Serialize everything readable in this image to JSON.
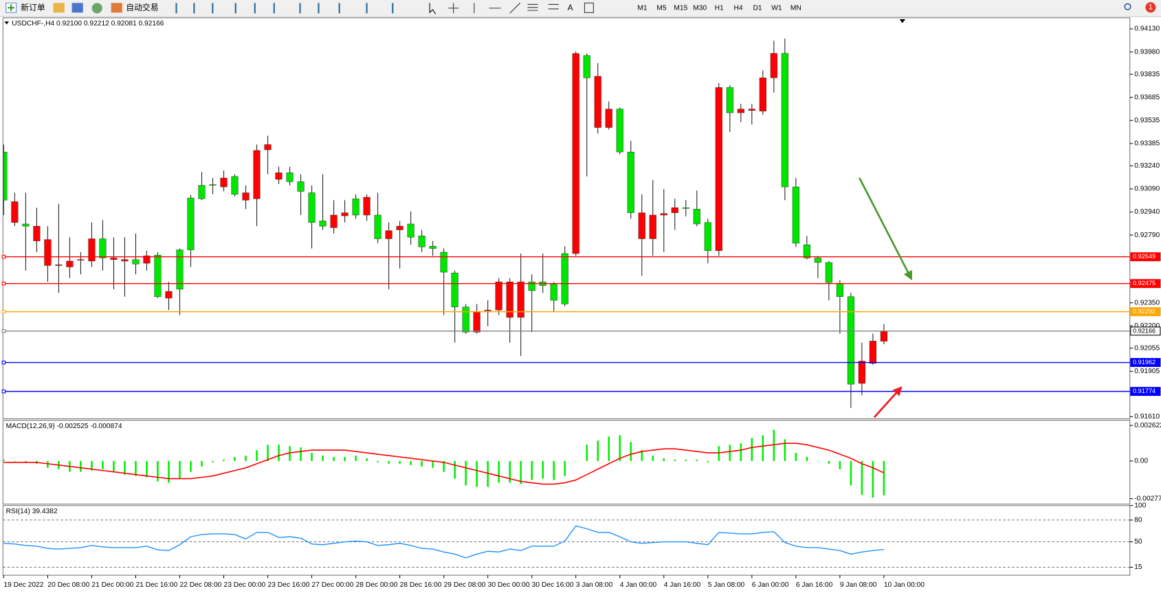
{
  "toolbar": {
    "new_order": "新订单",
    "auto_trading": "自动交易",
    "timeframes": [
      "M1",
      "M5",
      "M15",
      "M30",
      "H1",
      "H4",
      "D1",
      "W1",
      "MN"
    ],
    "notification_count": 1
  },
  "chart_data": [
    {
      "type": "candlestick",
      "title": "USDCHF-,H4  0.92100 0.92212 0.92081 0.92166",
      "categories": [
        "19 Dec 2022",
        null,
        null,
        null,
        "20 Dec 08:00",
        null,
        null,
        null,
        "21 Dec 00:00",
        null,
        null,
        null,
        "21 Dec 16:00",
        null,
        null,
        null,
        "22 Dec 08:00",
        null,
        null,
        null,
        "23 Dec 00:00",
        null,
        null,
        null,
        "23 Dec 16:00",
        null,
        null,
        null,
        "27 Dec 00:00",
        null,
        null,
        null,
        "28 Dec 00:00",
        null,
        null,
        null,
        "28 Dec 16:00",
        null,
        null,
        null,
        "29 Dec 08:00",
        null,
        null,
        null,
        "30 Dec 00:00",
        null,
        null,
        null,
        "30 Dec 16:00",
        null,
        null,
        null,
        "3 Jan 08:00",
        null,
        null,
        null,
        "4 Jan 00:00",
        null,
        null,
        null,
        "4 Jan 16:00",
        null,
        null,
        null,
        "5 Jan 08:00",
        null,
        null,
        null,
        "6 Jan 00:00",
        null,
        null,
        null,
        "6 Jan 16:00",
        null,
        null,
        null,
        "9 Jan 08:00",
        null,
        null,
        null,
        "10 Jan 00:00"
      ],
      "open": [
        0.9333,
        0.92872,
        0.92862,
        0.92752,
        0.92592,
        0.92592,
        0.92583,
        0.92631,
        0.92621,
        0.92766,
        0.92631,
        0.92621,
        0.92631,
        0.92607,
        0.9266,
        0.9238,
        0.92694,
        0.93031,
        0.93113,
        0.93118,
        0.93103,
        0.93171,
        0.93017,
        0.93026,
        0.93344,
        0.93152,
        0.93195,
        0.93137,
        0.93065,
        0.92882,
        0.92838,
        0.92915,
        0.93026,
        0.9292,
        0.9292,
        0.92766,
        0.92824,
        0.92862,
        0.92785,
        0.92718,
        0.92679,
        0.92544,
        0.92323,
        0.92159,
        0.92298,
        0.92303,
        0.92255,
        0.92255,
        0.92486,
        0.92486,
        0.92472,
        0.9267,
        0.9267,
        0.93957,
        0.93489,
        0.93489,
        0.93609,
        0.9333,
        0.92766,
        0.92766,
        0.9292,
        0.92935,
        0.92968,
        0.92959,
        0.92872,
        0.92689,
        0.93749,
        0.93585,
        0.936,
        0.93595,
        0.93812,
        0.93971,
        0.93103,
        0.92727,
        0.92641,
        0.92612,
        0.92477,
        0.9239,
        0.91826,
        0.91956,
        0.921
      ],
      "high": [
        0.93378,
        0.93065,
        0.93065,
        0.92968,
        0.92848,
        0.92993,
        0.92776,
        0.92679,
        0.92872,
        0.92887,
        0.92776,
        0.92776,
        0.928,
        0.92689,
        0.92679,
        0.92486,
        0.92703,
        0.9305,
        0.932,
        0.93161,
        0.93209,
        0.93185,
        0.93113,
        0.93378,
        0.93436,
        0.93234,
        0.93234,
        0.93185,
        0.93113,
        0.93185,
        0.93017,
        0.93017,
        0.93055,
        0.93055,
        0.93065,
        0.92872,
        0.92882,
        0.92944,
        0.92824,
        0.92752,
        0.92703,
        0.92559,
        0.92342,
        0.92342,
        0.92366,
        0.9251,
        0.9251,
        0.9267,
        0.92535,
        0.9267,
        0.92486,
        0.92718,
        0.93984,
        0.93971,
        0.93908,
        0.93658,
        0.93619,
        0.93402,
        0.93055,
        0.93147,
        0.93089,
        0.93026,
        0.93017,
        0.93079,
        0.92896,
        0.93778,
        0.93764,
        0.93643,
        0.93643,
        0.9386,
        0.94053,
        0.94067,
        0.93161,
        0.92785,
        0.92655,
        0.92621,
        0.92496,
        0.92414,
        0.92091,
        0.92149,
        0.92212
      ],
      "low": [
        0.9292,
        0.92848,
        0.92559,
        0.92679,
        0.92486,
        0.92414,
        0.9251,
        0.92535,
        0.92583,
        0.92559,
        0.92438,
        0.9239,
        0.92535,
        0.92559,
        0.9238,
        0.92303,
        0.9227,
        0.92583,
        0.93017,
        0.93055,
        0.93074,
        0.93041,
        0.92959,
        0.92848,
        0.93185,
        0.93122,
        0.93113,
        0.9292,
        0.92703,
        0.92824,
        0.928,
        0.92872,
        0.92896,
        0.92882,
        0.92737,
        0.92438,
        0.92573,
        0.92727,
        0.92679,
        0.92655,
        0.9227,
        0.92091,
        0.92149,
        0.92149,
        0.92197,
        0.9227,
        0.92091,
        0.92004,
        0.92159,
        0.92414,
        0.92294,
        0.92327,
        0.92655,
        0.93171,
        0.9345,
        0.93475,
        0.93315,
        0.92896,
        0.92525,
        0.92655,
        0.92679,
        0.92824,
        0.92911,
        0.92848,
        0.92607,
        0.92655,
        0.9346,
        0.93523,
        0.93508,
        0.93571,
        0.93716,
        0.93017,
        0.92713,
        0.92631,
        0.9251,
        0.92366,
        0.92149,
        0.91667,
        0.91749,
        0.91947,
        0.92081
      ],
      "close": [
        0.93017,
        0.93007,
        0.92848,
        0.92848,
        0.92761,
        0.92597,
        0.92621,
        0.92631,
        0.92766,
        0.92641,
        0.92641,
        0.92631,
        0.92602,
        0.92655,
        0.9239,
        0.92424,
        0.92438,
        0.92694,
        0.93026,
        0.93113,
        0.93161,
        0.93055,
        0.93065,
        0.9334,
        0.93378,
        0.93195,
        0.93137,
        0.93074,
        0.92872,
        0.92848,
        0.9292,
        0.92935,
        0.9292,
        0.93036,
        0.92766,
        0.92819,
        0.92848,
        0.92776,
        0.92713,
        0.92703,
        0.92549,
        0.92323,
        0.92159,
        0.92294,
        0.92303,
        0.92486,
        0.92486,
        0.92486,
        0.92429,
        0.92462,
        0.92366,
        0.92342,
        0.9397,
        0.93812,
        0.93822,
        0.93609,
        0.9333,
        0.92935,
        0.92935,
        0.9292,
        0.9293,
        0.92968,
        0.92964,
        0.92862,
        0.92689,
        0.93749,
        0.93585,
        0.93609,
        0.93609,
        0.93812,
        0.93971,
        0.93103,
        0.92737,
        0.92641,
        0.92612,
        0.92482,
        0.9239,
        0.91821,
        0.91971,
        0.92101,
        0.92166
      ],
      "up_color": "#ff0000",
      "down_color": "#00e600",
      "wick_color": "#202020",
      "ylim": [
        0.91596,
        0.94202
      ],
      "yticks": [
        {
          "value": 0.9413,
          "label": "0.94130"
        },
        {
          "value": 0.9398,
          "label": "0.93980"
        },
        0.93835,
        0.93685,
        0.93535,
        0.93385,
        {
          "value": 0.9324,
          "label": "0.93240"
        },
        {
          "value": 0.9309,
          "label": "0.93090"
        },
        {
          "value": 0.9294,
          "label": "0.92940"
        },
        {
          "value": 0.9279,
          "label": "0.92790"
        },
        {
          "value": 0.9235,
          "label": "0.92350"
        },
        {
          "value": 0.922,
          "label": "0.92200"
        },
        0.92055,
        0.91905,
        {
          "value": 0.9161,
          "label": "0.91610"
        }
      ],
      "hlines": [
        {
          "value": 0.92649,
          "color": "#ff0000"
        },
        {
          "value": 0.92475,
          "color": "#ff0000"
        },
        {
          "value": 0.92292,
          "color": "#ffa500"
        },
        {
          "value": 0.92166,
          "color": "#808080"
        },
        {
          "value": 0.91962,
          "color": "#0000ff"
        },
        {
          "value": 0.91774,
          "color": "#0000ff"
        }
      ]
    },
    {
      "type": "macd",
      "title": "MACD(12,26,9) -0.002525 -0.000874",
      "values": [
        0.0001,
        0.0,
        -0.0001,
        -0.0002,
        -0.0005,
        -0.0006,
        -0.0008,
        -0.0008,
        -0.0007,
        -0.0006,
        -0.0008,
        -0.001,
        -0.0011,
        -0.0012,
        -0.0015,
        -0.0016,
        -0.0013,
        -0.0008,
        -0.0004,
        -0.0001,
        0.0001,
        0.0003,
        0.0004,
        0.0008,
        0.0012,
        0.0012,
        0.0011,
        0.001,
        0.0006,
        0.0004,
        0.0003,
        0.0003,
        0.0004,
        0.0002,
        -0.0001,
        -0.0002,
        -0.0002,
        -0.0003,
        -0.0004,
        -0.0005,
        -0.0008,
        -0.0013,
        -0.0018,
        -0.0019,
        -0.0019,
        -0.0016,
        -0.0016,
        -0.0017,
        -0.0014,
        -0.0013,
        -0.0014,
        -0.0011,
        0.0,
        0.0012,
        0.0015,
        0.0018,
        0.0019,
        0.0014,
        0.0008,
        0.0004,
        0.0002,
        0.0001,
        0.0001,
        0.0001,
        -0.0001,
        0.0011,
        0.0012,
        0.0013,
        0.0017,
        0.0019,
        0.0023,
        0.0016,
        0.0006,
        0.0003,
        0.0,
        -0.0002,
        -0.0006,
        -0.0018,
        -0.0025,
        -0.0027,
        -0.002525
      ],
      "signal": [
        -0.0001,
        -0.0001,
        -0.0001,
        -0.0001,
        -0.0002,
        -0.0003,
        -0.0004,
        -0.0005,
        -0.0006,
        -0.0007,
        -0.0008,
        -0.0009,
        -0.001,
        -0.0011,
        -0.0012,
        -0.0013,
        -0.0013,
        -0.0013,
        -0.0012,
        -0.0011,
        -0.0009,
        -0.0007,
        -0.0005,
        -0.0002,
        0.0001,
        0.0004,
        0.0006,
        0.0007,
        0.0008,
        0.0008,
        0.0008,
        0.0008,
        0.0007,
        0.0006,
        0.0005,
        0.0004,
        0.0003,
        0.0002,
        0.0001,
        0.0,
        -0.0001,
        -0.0003,
        -0.0005,
        -0.0007,
        -0.0009,
        -0.0011,
        -0.0013,
        -0.0015,
        -0.0016,
        -0.0017,
        -0.0017,
        -0.0016,
        -0.0014,
        -0.001,
        -0.0006,
        -0.0002,
        0.0002,
        0.0005,
        0.0007,
        0.0008,
        0.0009,
        0.0009,
        0.0008,
        0.0007,
        0.0006,
        0.0006,
        0.0007,
        0.0008,
        0.001,
        0.0011,
        0.0012,
        0.0013,
        0.0013,
        0.0012,
        0.001,
        0.0008,
        0.0005,
        0.0002,
        -0.0002,
        -0.0005,
        -0.000874
      ],
      "color": "#00ee00",
      "signal_color": "#ff0000",
      "ylim": [
        -0.00317,
        0.003
      ],
      "yticks": [
        0.002622,
        {
          "value": 0,
          "label": "0.00"
        },
        -0.00277
      ]
    },
    {
      "type": "line",
      "title": "RSI(14) 39.4382",
      "values": [
        48,
        47,
        45,
        44,
        41,
        40,
        41,
        42,
        45,
        43,
        42,
        42,
        42,
        44,
        39,
        38,
        46,
        57,
        60,
        61,
        61,
        60,
        54,
        63,
        63,
        56,
        57,
        55,
        47,
        46,
        48,
        50,
        51,
        50,
        45,
        46,
        48,
        45,
        41,
        40,
        36,
        33,
        28,
        33,
        37,
        36,
        40,
        38,
        44,
        44,
        44,
        51,
        72,
        68,
        63,
        63,
        57,
        50,
        48,
        49,
        50,
        50,
        50,
        48,
        46,
        63,
        62,
        61,
        61,
        63,
        64,
        49,
        44,
        42,
        42,
        40,
        38,
        33,
        36,
        38,
        39.4382
      ],
      "color": "#1e90ff",
      "ylim": [
        4,
        100
      ],
      "yticks": [
        100,
        80,
        50,
        15
      ],
      "levels": [
        80,
        50,
        15
      ]
    }
  ]
}
